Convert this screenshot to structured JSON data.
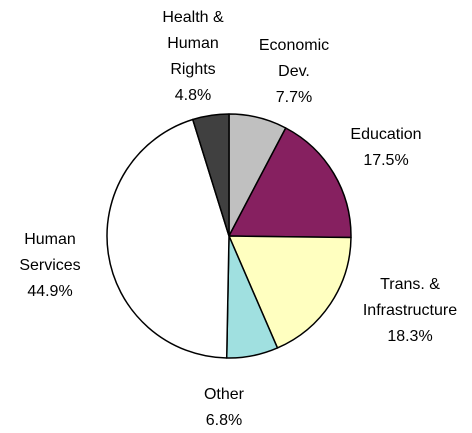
{
  "chart_data": {
    "type": "pie",
    "categories": [
      "Economic Dev.",
      "Education",
      "Trans. & Infrastructure",
      "Other",
      "Human Services",
      "Health & Human Rights"
    ],
    "values": [
      7.7,
      17.5,
      18.3,
      6.8,
      44.9,
      4.8
    ],
    "value_labels": [
      "7.7%",
      "17.5%",
      "18.3%",
      "6.8%",
      "44.9%",
      "4.8%"
    ],
    "colors": [
      "#c0c0c0",
      "#862060",
      "#ffffc0",
      "#a0e0e0",
      "#ffffff",
      "#404040"
    ]
  }
}
